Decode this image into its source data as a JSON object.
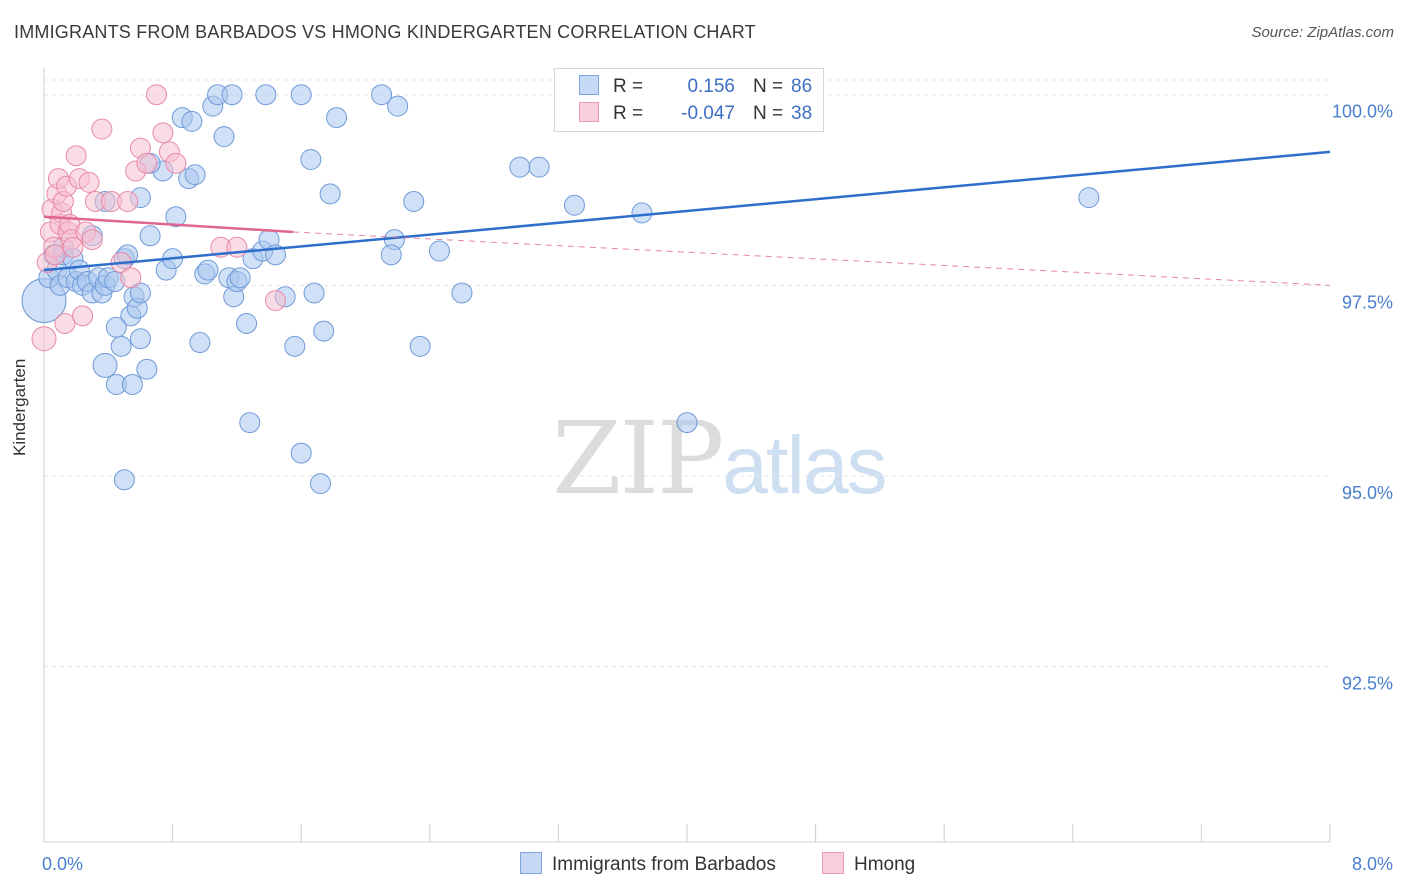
{
  "title": "IMMIGRANTS FROM BARBADOS VS HMONG KINDERGARTEN CORRELATION CHART",
  "source": "Source: ZipAtlas.com",
  "watermark": {
    "zip": "ZIP",
    "atlas": "atlas"
  },
  "legend": {
    "rows": [
      {
        "r_label": "R =",
        "r_value": " 0.156",
        "n_label": "N =",
        "n_value": "86"
      },
      {
        "r_label": "R =",
        "r_value": "-0.047",
        "n_label": "N =",
        "n_value": "38"
      }
    ]
  },
  "colors": {
    "blue_fill": "#a9c6ee",
    "blue_stroke": "#6f9ad8",
    "blue_line": "#2f6fcc",
    "pink_fill": "#f6bfd0",
    "pink_stroke": "#e88aa8",
    "pink_line": "#e06690",
    "axis_text": "#4a7fcf",
    "grid": "#e4e4e4"
  },
  "chart_data": {
    "type": "scatter",
    "title": "IMMIGRANTS FROM BARBADOS VS HMONG KINDERGARTEN CORRELATION CHART",
    "xlabel": "",
    "ylabel": "Kindergarten",
    "xlim": [
      0,
      8
    ],
    "ylim": [
      90.2,
      100.35
    ],
    "x_tick_labels": [
      "0.0%",
      "8.0%"
    ],
    "y_ticks": [
      92.5,
      95.0,
      97.5,
      100.0
    ],
    "y_tick_labels": [
      "92.5%",
      "95.0%",
      "97.5%",
      "100.0%"
    ],
    "series": [
      {
        "name": "Immigrants from Barbados",
        "color": "blue",
        "r": 0.156,
        "n": 86,
        "trend": {
          "x": [
            0.0,
            8.0
          ],
          "y": [
            97.7,
            99.25
          ],
          "dashed_to": null
        },
        "points": [
          [
            0.0,
            97.3,
            22
          ],
          [
            0.03,
            97.6,
            10
          ],
          [
            0.06,
            97.9,
            10
          ],
          [
            0.08,
            97.7,
            10
          ],
          [
            0.1,
            97.5,
            10
          ],
          [
            0.12,
            97.9,
            10
          ],
          [
            0.12,
            98.0,
            10
          ],
          [
            0.15,
            97.6,
            10
          ],
          [
            0.18,
            97.85,
            10
          ],
          [
            0.2,
            97.55,
            10
          ],
          [
            0.22,
            97.7,
            10
          ],
          [
            0.24,
            97.5,
            10
          ],
          [
            0.27,
            97.55,
            10
          ],
          [
            0.3,
            98.15,
            10
          ],
          [
            0.3,
            97.4,
            10
          ],
          [
            0.34,
            97.6,
            10
          ],
          [
            0.36,
            97.4,
            10
          ],
          [
            0.38,
            97.5,
            10
          ],
          [
            0.4,
            97.6,
            10
          ],
          [
            0.44,
            97.55,
            10
          ],
          [
            0.38,
            96.45,
            12
          ],
          [
            0.38,
            98.6,
            10
          ],
          [
            0.48,
            96.7,
            10
          ],
          [
            0.5,
            97.85,
            10
          ],
          [
            0.52,
            97.9,
            10
          ],
          [
            0.54,
            97.1,
            10
          ],
          [
            0.56,
            97.35,
            10
          ],
          [
            0.45,
            96.95,
            10
          ],
          [
            0.58,
            97.2,
            10
          ],
          [
            0.6,
            97.4,
            10
          ],
          [
            0.45,
            96.2,
            10
          ],
          [
            0.6,
            98.65,
            10
          ],
          [
            0.6,
            96.8,
            10
          ],
          [
            0.5,
            94.95,
            10
          ],
          [
            0.55,
            96.2,
            10
          ],
          [
            0.66,
            98.15,
            10
          ],
          [
            0.74,
            99.0,
            10
          ],
          [
            0.76,
            97.7,
            10
          ],
          [
            0.8,
            97.85,
            10
          ],
          [
            0.82,
            98.4,
            10
          ],
          [
            0.66,
            99.1,
            10
          ],
          [
            0.64,
            96.4,
            10
          ],
          [
            0.86,
            99.7,
            10
          ],
          [
            0.9,
            98.9,
            10
          ],
          [
            0.92,
            99.65,
            10
          ],
          [
            0.94,
            98.95,
            10
          ],
          [
            0.97,
            96.75,
            10
          ],
          [
            1.0,
            97.65,
            10
          ],
          [
            1.02,
            97.7,
            10
          ],
          [
            1.05,
            99.85,
            10
          ],
          [
            1.12,
            99.45,
            10
          ],
          [
            1.15,
            97.6,
            10
          ],
          [
            1.18,
            97.35,
            10
          ],
          [
            1.2,
            97.55,
            10
          ],
          [
            1.22,
            97.6,
            10
          ],
          [
            1.26,
            97.0,
            10
          ],
          [
            1.28,
            95.7,
            10
          ],
          [
            1.3,
            97.85,
            10
          ],
          [
            1.36,
            97.95,
            10
          ],
          [
            1.4,
            98.1,
            10
          ],
          [
            1.44,
            97.9,
            10
          ],
          [
            1.5,
            97.35,
            10
          ],
          [
            1.56,
            96.7,
            10
          ],
          [
            1.6,
            95.3,
            10
          ],
          [
            1.66,
            99.15,
            10
          ],
          [
            1.68,
            97.4,
            10
          ],
          [
            1.72,
            94.9,
            10
          ],
          [
            1.74,
            96.9,
            10
          ],
          [
            1.78,
            98.7,
            10
          ],
          [
            1.6,
            100.0,
            10
          ],
          [
            1.82,
            99.7,
            10
          ],
          [
            1.08,
            100.0,
            10
          ],
          [
            1.17,
            100.0,
            10
          ],
          [
            1.38,
            100.0,
            10
          ],
          [
            2.1,
            100.0,
            10
          ],
          [
            2.2,
            99.85,
            10
          ],
          [
            2.18,
            98.1,
            10
          ],
          [
            2.16,
            97.9,
            10
          ],
          [
            2.3,
            98.6,
            10
          ],
          [
            2.34,
            96.7,
            10
          ],
          [
            2.46,
            97.95,
            10
          ],
          [
            2.6,
            97.4,
            10
          ],
          [
            2.96,
            99.05,
            10
          ],
          [
            3.08,
            99.05,
            10
          ],
          [
            3.3,
            98.55,
            10
          ],
          [
            3.72,
            98.45,
            10
          ],
          [
            4.0,
            95.7,
            10
          ],
          [
            6.5,
            98.65,
            10
          ]
        ]
      },
      {
        "name": "Hmong",
        "color": "pink",
        "r": -0.047,
        "n": 38,
        "trend": {
          "x": [
            0.0,
            1.55
          ],
          "y": [
            98.4,
            98.2
          ],
          "dashed_to": {
            "x": 8.0,
            "y": 97.5
          }
        },
        "points": [
          [
            0.0,
            96.8,
            12
          ],
          [
            0.02,
            97.8,
            10
          ],
          [
            0.04,
            98.2,
            10
          ],
          [
            0.05,
            98.5,
            10
          ],
          [
            0.06,
            98.0,
            10
          ],
          [
            0.07,
            97.9,
            10
          ],
          [
            0.08,
            98.7,
            10
          ],
          [
            0.09,
            98.9,
            10
          ],
          [
            0.1,
            98.3,
            10
          ],
          [
            0.11,
            98.45,
            10
          ],
          [
            0.12,
            98.6,
            10
          ],
          [
            0.13,
            97.0,
            10
          ],
          [
            0.14,
            98.8,
            10
          ],
          [
            0.15,
            98.2,
            10
          ],
          [
            0.16,
            98.3,
            10
          ],
          [
            0.17,
            98.1,
            10
          ],
          [
            0.18,
            98.0,
            10
          ],
          [
            0.2,
            99.2,
            10
          ],
          [
            0.22,
            98.9,
            10
          ],
          [
            0.24,
            97.1,
            10
          ],
          [
            0.26,
            98.2,
            10
          ],
          [
            0.28,
            98.85,
            10
          ],
          [
            0.3,
            98.1,
            10
          ],
          [
            0.32,
            98.6,
            10
          ],
          [
            0.36,
            99.55,
            10
          ],
          [
            0.42,
            98.6,
            10
          ],
          [
            0.48,
            97.8,
            10
          ],
          [
            0.52,
            98.6,
            10
          ],
          [
            0.54,
            97.6,
            10
          ],
          [
            0.57,
            99.0,
            10
          ],
          [
            0.6,
            99.3,
            10
          ],
          [
            0.64,
            99.1,
            10
          ],
          [
            0.7,
            100.0,
            10
          ],
          [
            0.74,
            99.5,
            10
          ],
          [
            0.78,
            99.25,
            10
          ],
          [
            0.82,
            99.1,
            10
          ],
          [
            1.1,
            98.0,
            10
          ],
          [
            1.2,
            98.0,
            10
          ],
          [
            1.44,
            97.3,
            10
          ]
        ]
      }
    ]
  }
}
